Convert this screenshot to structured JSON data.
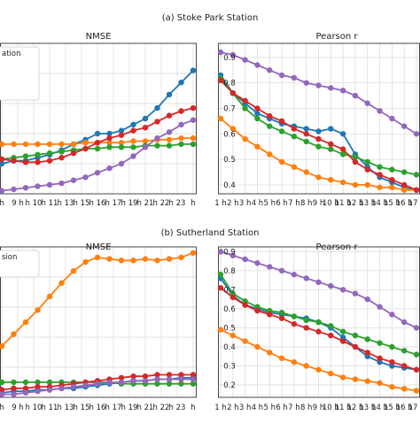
{
  "captions": [
    "(a) Stoke Park Station",
    "(b) Sutherland Station"
  ],
  "colors": {
    "blue": "#1f77b4",
    "orange": "#ff7f0e",
    "green": "#2ca02c",
    "red": "#d62728",
    "purple": "#9467bd"
  },
  "chart_data": [
    {
      "id": "a-nmse",
      "type": "line",
      "title": "NMSE",
      "legend_partial_text": "ation",
      "legend_position": "top-left",
      "grid": true,
      "x": [
        "h",
        "9 h",
        "10 h",
        "11 h",
        "12 h",
        "13 h",
        "14 h",
        "15 h",
        "16 h",
        "17 h",
        "18 h",
        "19 h",
        "20 h",
        "21 h",
        "22 h",
        "23 h",
        "24 h"
      ],
      "x_tick_labels": [
        "h",
        "9 h",
        "h 10",
        "h 11",
        "h 13",
        "h 15",
        "h 16",
        "h 17",
        "h 19",
        "h 21",
        "h 22",
        "h 23",
        "h"
      ],
      "ylim": [
        0,
        1
      ],
      "series": [
        {
          "color": "blue",
          "values": [
            0.2,
            0.22,
            0.22,
            0.24,
            0.26,
            0.29,
            0.33,
            0.36,
            0.4,
            0.4,
            0.42,
            0.46,
            0.5,
            0.57,
            0.66,
            0.74,
            0.82
          ]
        },
        {
          "color": "orange",
          "values": [
            0.33,
            0.33,
            0.33,
            0.33,
            0.33,
            0.33,
            0.33,
            0.34,
            0.34,
            0.34,
            0.34,
            0.35,
            0.35,
            0.36,
            0.36,
            0.37,
            0.37
          ]
        },
        {
          "color": "green",
          "values": [
            0.23,
            0.24,
            0.25,
            0.26,
            0.27,
            0.28,
            0.29,
            0.3,
            0.3,
            0.31,
            0.31,
            0.31,
            0.32,
            0.32,
            0.32,
            0.33,
            0.33
          ]
        },
        {
          "color": "red",
          "values": [
            0.23,
            0.22,
            0.21,
            0.21,
            0.22,
            0.24,
            0.27,
            0.3,
            0.34,
            0.37,
            0.39,
            0.42,
            0.44,
            0.48,
            0.52,
            0.55,
            0.57
          ]
        },
        {
          "color": "purple",
          "values": [
            0.02,
            0.03,
            0.04,
            0.05,
            0.06,
            0.07,
            0.09,
            0.11,
            0.14,
            0.17,
            0.2,
            0.25,
            0.31,
            0.37,
            0.41,
            0.46,
            0.49
          ]
        }
      ]
    },
    {
      "id": "a-pearson",
      "type": "line",
      "title": "Pearson r",
      "grid": true,
      "x": [
        "1 h",
        "2 h",
        "3 h",
        "4 h",
        "5 h",
        "6 h",
        "7 h",
        "8 h",
        "9 h",
        "10 h",
        "11 h",
        "12 h",
        "13 h",
        "14 h",
        "15 h",
        "16 h",
        "17 h"
      ],
      "x_tick_labels": [
        "1 h",
        "2 h",
        "3 h",
        "4 h",
        "5 h",
        "6 h",
        "7 h",
        "8 h",
        "9 h",
        "10 h",
        "11 h",
        "12 h",
        "13 h",
        "14 h",
        "15 h",
        "16 h",
        "17 h"
      ],
      "y_ticks": [
        "0.4",
        "0.5",
        "0.6",
        "0.7",
        "0.8",
        "0.9"
      ],
      "ylim": [
        0.365,
        0.955
      ],
      "series": [
        {
          "color": "blue",
          "values": [
            0.83,
            0.76,
            0.72,
            0.68,
            0.66,
            0.64,
            0.63,
            0.62,
            0.61,
            0.62,
            0.6,
            0.52,
            0.47,
            0.43,
            0.41,
            0.39,
            0.38
          ]
        },
        {
          "color": "orange",
          "values": [
            0.66,
            0.62,
            0.58,
            0.55,
            0.52,
            0.49,
            0.47,
            0.45,
            0.43,
            0.42,
            0.41,
            0.4,
            0.4,
            0.39,
            0.39,
            0.38,
            0.38
          ]
        },
        {
          "color": "green",
          "values": [
            0.82,
            0.76,
            0.7,
            0.66,
            0.63,
            0.61,
            0.59,
            0.57,
            0.55,
            0.54,
            0.52,
            0.51,
            0.49,
            0.47,
            0.46,
            0.45,
            0.44
          ]
        },
        {
          "color": "red",
          "values": [
            0.81,
            0.76,
            0.73,
            0.7,
            0.67,
            0.65,
            0.62,
            0.6,
            0.58,
            0.56,
            0.54,
            0.49,
            0.46,
            0.44,
            0.42,
            0.4,
            0.38
          ]
        },
        {
          "color": "purple",
          "values": [
            0.92,
            0.91,
            0.89,
            0.87,
            0.85,
            0.83,
            0.82,
            0.8,
            0.79,
            0.78,
            0.77,
            0.75,
            0.72,
            0.69,
            0.66,
            0.63,
            0.6
          ]
        }
      ]
    },
    {
      "id": "b-nmse",
      "type": "line",
      "title": "NMSE",
      "legend_partial_text": "sion",
      "legend_position": "top-left",
      "grid": true,
      "x": [
        "h",
        "9 h",
        "10 h",
        "11 h",
        "12 h",
        "13 h",
        "14 h",
        "15 h",
        "16 h",
        "17 h",
        "18 h",
        "19 h",
        "20 h",
        "21 h",
        "22 h",
        "23 h",
        "24 h"
      ],
      "x_tick_labels": [
        "h",
        "9 h",
        "h 10",
        "h 11",
        "h 13",
        "h 15",
        "h 16",
        "h 17",
        "h 19",
        "h 21",
        "h 22",
        "h 23",
        "h"
      ],
      "ylim": [
        0,
        1
      ],
      "series": [
        {
          "color": "blue",
          "values": [
            0.03,
            0.04,
            0.04,
            0.05,
            0.05,
            0.06,
            0.06,
            0.07,
            0.08,
            0.09,
            0.1,
            0.11,
            0.11,
            0.12,
            0.12,
            0.13,
            0.13
          ]
        },
        {
          "color": "orange",
          "values": [
            0.34,
            0.42,
            0.5,
            0.58,
            0.67,
            0.76,
            0.84,
            0.9,
            0.93,
            0.92,
            0.91,
            0.91,
            0.92,
            0.91,
            0.92,
            0.93,
            0.96
          ]
        },
        {
          "color": "green",
          "values": [
            0.1,
            0.1,
            0.1,
            0.1,
            0.1,
            0.1,
            0.1,
            0.1,
            0.1,
            0.1,
            0.09,
            0.09,
            0.09,
            0.09,
            0.09,
            0.09,
            0.09
          ]
        },
        {
          "color": "red",
          "values": [
            0.05,
            0.06,
            0.06,
            0.07,
            0.07,
            0.08,
            0.09,
            0.1,
            0.11,
            0.12,
            0.13,
            0.14,
            0.14,
            0.15,
            0.15,
            0.15,
            0.15
          ]
        },
        {
          "color": "purple",
          "values": [
            0.02,
            0.02,
            0.03,
            0.04,
            0.05,
            0.06,
            0.07,
            0.08,
            0.09,
            0.1,
            0.1,
            0.11,
            0.11,
            0.12,
            0.12,
            0.12,
            0.12
          ]
        }
      ]
    },
    {
      "id": "b-pearson",
      "type": "line",
      "title": "Pearson r",
      "grid": true,
      "x": [
        "1 h",
        "2 h",
        "3 h",
        "4 h",
        "5 h",
        "6 h",
        "7 h",
        "8 h",
        "9 h",
        "10 h",
        "11 h",
        "12 h",
        "13 h",
        "14 h",
        "15 h",
        "16 h",
        "17 h"
      ],
      "x_tick_labels": [
        "1 h",
        "2 h",
        "3 h",
        "4 h",
        "5 h",
        "6 h",
        "7 h",
        "8 h",
        "9 h",
        "10 h",
        "11 h",
        "12 h",
        "13 h",
        "14 h",
        "15 h",
        "16 h",
        "17 h"
      ],
      "y_ticks": [
        "0.2",
        "0.3",
        "0.4",
        "0.5",
        "0.6",
        "0.7",
        "0.8",
        "0.9"
      ],
      "ylim": [
        0.135,
        0.925
      ],
      "series": [
        {
          "color": "blue",
          "values": [
            0.76,
            0.67,
            0.62,
            0.6,
            0.58,
            0.57,
            0.56,
            0.55,
            0.53,
            0.5,
            0.45,
            0.4,
            0.35,
            0.32,
            0.3,
            0.29,
            0.28
          ]
        },
        {
          "color": "orange",
          "values": [
            0.49,
            0.46,
            0.43,
            0.4,
            0.37,
            0.34,
            0.32,
            0.3,
            0.28,
            0.26,
            0.24,
            0.23,
            0.22,
            0.21,
            0.19,
            0.18,
            0.17
          ]
        },
        {
          "color": "green",
          "values": [
            0.78,
            0.68,
            0.64,
            0.61,
            0.59,
            0.58,
            0.56,
            0.54,
            0.53,
            0.51,
            0.48,
            0.46,
            0.44,
            0.42,
            0.4,
            0.38,
            0.36
          ]
        },
        {
          "color": "red",
          "values": [
            0.71,
            0.66,
            0.62,
            0.59,
            0.57,
            0.55,
            0.52,
            0.5,
            0.48,
            0.46,
            0.43,
            0.4,
            0.37,
            0.34,
            0.32,
            0.3,
            0.28
          ]
        },
        {
          "color": "purple",
          "values": [
            0.9,
            0.88,
            0.86,
            0.84,
            0.82,
            0.8,
            0.78,
            0.76,
            0.74,
            0.72,
            0.7,
            0.68,
            0.65,
            0.61,
            0.57,
            0.53,
            0.5
          ]
        }
      ]
    }
  ]
}
